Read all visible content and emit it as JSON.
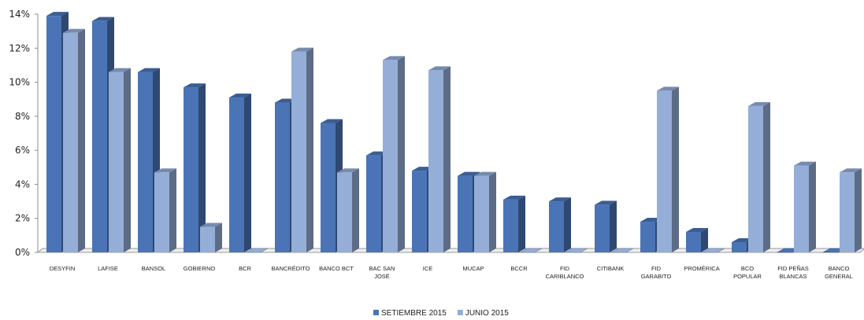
{
  "chart_data": {
    "type": "bar",
    "style": "3d-clustered-column",
    "categories": [
      [
        "DESYFIN"
      ],
      [
        "LAFISE"
      ],
      [
        "BANSOL"
      ],
      [
        "GOBIERNO"
      ],
      [
        "BCR"
      ],
      [
        "BANCRÉDITO"
      ],
      [
        "BANCO BCT"
      ],
      [
        "BAC SAN",
        "JOSÉ"
      ],
      [
        "ICE"
      ],
      [
        "MUCAP"
      ],
      [
        "BCCR"
      ],
      [
        "FID",
        "CARIBLANCO"
      ],
      [
        "CITIBANK"
      ],
      [
        "FID",
        "GARABITO"
      ],
      [
        "PROMÉRICA"
      ],
      [
        "BCO",
        "POPULAR"
      ],
      [
        "FID PEÑAS",
        "BLANCAS"
      ],
      [
        "BANCO",
        "GENERAL"
      ]
    ],
    "series": [
      {
        "name": "SETIEMBRE 2015",
        "color": "#4a74b6",
        "values": [
          13.9,
          13.6,
          10.6,
          9.7,
          9.1,
          8.8,
          7.6,
          5.7,
          4.8,
          4.5,
          3.1,
          3.0,
          2.8,
          1.8,
          1.2,
          0.6,
          0.0,
          0.0
        ]
      },
      {
        "name": "JUNIO 2015",
        "color": "#94aed8",
        "values": [
          12.9,
          10.6,
          4.7,
          1.5,
          0.0,
          11.8,
          4.7,
          11.3,
          10.7,
          4.5,
          0.0,
          0.0,
          0.0,
          9.5,
          0.0,
          8.6,
          5.1,
          4.7
        ]
      }
    ],
    "yticks": [
      "0%",
      "2%",
      "4%",
      "6%",
      "8%",
      "10%",
      "12%",
      "14%"
    ],
    "ylim": [
      0,
      14
    ],
    "ytick_step": 2,
    "grid": false,
    "legend_position": "bottom-center"
  }
}
